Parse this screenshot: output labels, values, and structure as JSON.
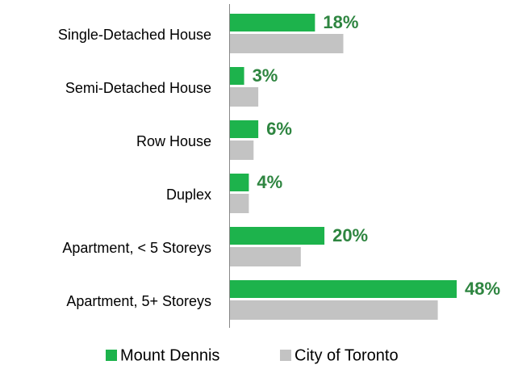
{
  "chart_data": {
    "type": "hbar",
    "categories": [
      "Single-Detached House",
      "Semi-Detached House",
      "Row House",
      "Duplex",
      "Apartment, < 5 Storeys",
      "Apartment, 5+ Storeys"
    ],
    "series": [
      {
        "name": "Mount Dennis",
        "color": "#1db34c",
        "values": [
          18,
          3,
          6,
          4,
          20,
          48
        ],
        "value_labels": [
          "18%",
          "3%",
          "6%",
          "4%",
          "20%",
          "48%"
        ]
      },
      {
        "name": "City of Toronto",
        "color": "#c3c3c3",
        "values": [
          24,
          6,
          5,
          4,
          15,
          44
        ]
      }
    ],
    "legend": "bottom"
  }
}
